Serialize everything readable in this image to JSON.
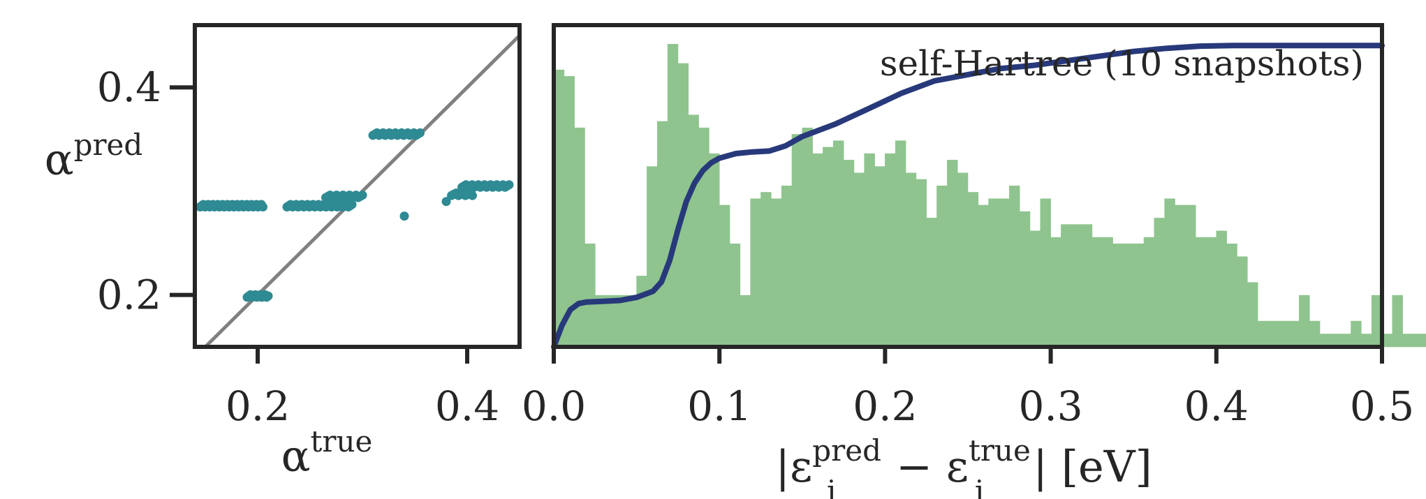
{
  "colors": {
    "frame": "#262626",
    "scatter": "#2e8a93",
    "identity_line": "#808080",
    "histogram": "#8fc48f",
    "cdf": "#27397a"
  },
  "chart_data": [
    {
      "type": "scatter",
      "title": "",
      "xlabel": {
        "base": "α",
        "sup": "true"
      },
      "ylabel": {
        "base": "α",
        "sup": "pred"
      },
      "xlim": [
        0.14,
        0.45
      ],
      "ylim": [
        0.15,
        0.46
      ],
      "xticks": [
        0.2,
        0.4
      ],
      "xtick_labels": [
        "0.2",
        "0.4"
      ],
      "yticks": [
        0.2,
        0.4
      ],
      "ytick_labels": [
        "0.2",
        "0.4"
      ],
      "grid": false,
      "reference_line": "y = x",
      "clusters": [
        {
          "x_range": [
            0.145,
            0.205
          ],
          "y": 0.286,
          "count": 40
        },
        {
          "x_range": [
            0.19,
            0.21
          ],
          "y": 0.199,
          "count": 14
        },
        {
          "x_range": [
            0.228,
            0.29
          ],
          "y": 0.286,
          "count": 36
        },
        {
          "x_range": [
            0.265,
            0.3
          ],
          "y": 0.295,
          "count": 18
        },
        {
          "x_range": [
            0.31,
            0.355
          ],
          "y": 0.355,
          "count": 24
        },
        {
          "x_range": [
            0.385,
            0.405
          ],
          "y": 0.297,
          "count": 10
        },
        {
          "x_range": [
            0.395,
            0.44
          ],
          "y": 0.305,
          "count": 24
        }
      ],
      "points": [
        {
          "x": 0.38,
          "y": 0.29
        },
        {
          "x": 0.34,
          "y": 0.276
        }
      ]
    },
    {
      "type": "bar",
      "subtype": "histogram with cumulative line",
      "title": "",
      "annotation": "self-Hartree (10 snapshots)",
      "xlabel": {
        "lead": "|ε",
        "sub": "i",
        "sup": "pred",
        "mid": " − ε",
        "sub2": "i",
        "sup2": "true",
        "trail": "| [eV]"
      },
      "ylabel": "",
      "xlim": [
        0.0,
        0.5
      ],
      "xticks": [
        0.0,
        0.1,
        0.2,
        0.3,
        0.4,
        0.5
      ],
      "xtick_labels": [
        "0.0",
        "0.1",
        "0.2",
        "0.3",
        "0.4",
        "0.5"
      ],
      "bin_width": 0.00625,
      "max_count": 48,
      "counts": [
        43,
        42,
        34,
        16,
        8,
        8,
        8,
        8,
        11,
        28,
        35,
        47,
        44,
        36,
        34,
        30,
        22,
        16,
        8,
        23,
        24,
        23,
        25,
        33,
        34,
        30,
        31,
        32,
        29,
        27,
        30,
        28,
        30,
        32,
        27,
        26,
        20,
        25,
        29,
        27,
        24,
        22,
        23,
        23,
        25,
        21,
        18,
        23,
        17,
        19,
        19,
        19,
        17,
        17,
        16,
        16,
        16,
        17,
        20,
        23,
        22,
        22,
        17,
        17,
        18,
        16,
        14,
        10,
        4,
        4,
        4,
        4,
        8,
        4,
        2,
        2,
        2,
        4,
        2,
        8,
        2,
        8,
        2,
        2,
        2,
        2,
        2,
        2,
        2,
        2
      ],
      "cdf_x": [
        0.0,
        0.005,
        0.01,
        0.015,
        0.02,
        0.03,
        0.04,
        0.05,
        0.06,
        0.065,
        0.07,
        0.075,
        0.08,
        0.085,
        0.09,
        0.095,
        0.1,
        0.11,
        0.12,
        0.13,
        0.14,
        0.15,
        0.17,
        0.19,
        0.21,
        0.23,
        0.25,
        0.27,
        0.29,
        0.31,
        0.33,
        0.35,
        0.37,
        0.39,
        0.41,
        0.45,
        0.5
      ],
      "cdf_y": [
        0.0,
        0.07,
        0.12,
        0.14,
        0.145,
        0.147,
        0.15,
        0.16,
        0.18,
        0.21,
        0.28,
        0.38,
        0.47,
        0.53,
        0.57,
        0.595,
        0.61,
        0.625,
        0.63,
        0.633,
        0.65,
        0.68,
        0.72,
        0.77,
        0.82,
        0.86,
        0.88,
        0.9,
        0.91,
        0.925,
        0.94,
        0.955,
        0.965,
        0.972,
        0.974,
        0.974,
        0.974
      ],
      "cdf_ylim": [
        0.0,
        1.04
      ]
    }
  ]
}
